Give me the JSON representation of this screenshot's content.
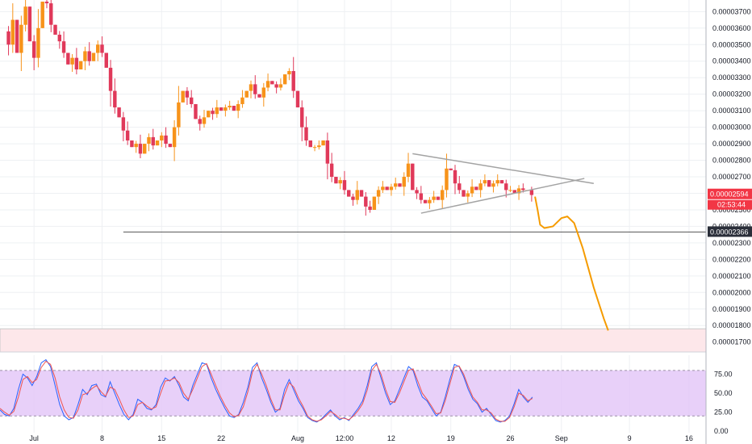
{
  "chart_data": [
    {
      "type": "candlestick",
      "panel": "price",
      "grid": true,
      "ylim": [
        1.64e-05,
        3.77e-05
      ],
      "y_ticks": [
        "0.00001700",
        "0.00001800",
        "0.00001900",
        "0.00002000",
        "0.00002100",
        "0.00002200",
        "0.00002300",
        "0.00002400",
        "0.00002500",
        "0.00002600",
        "0.00002700",
        "0.00002800",
        "0.00002900",
        "0.00003000",
        "0.00003100",
        "0.00003200",
        "0.00003300",
        "0.00003400",
        "0.00003500",
        "0.00003600",
        "0.00003700"
      ],
      "y_tick_values": [
        1.7e-05,
        1.8e-05,
        1.9e-05,
        2e-05,
        2.1e-05,
        2.2e-05,
        2.3e-05,
        2.4e-05,
        2.5e-05,
        2.6e-05,
        2.7e-05,
        2.8e-05,
        2.9e-05,
        3e-05,
        3.1e-05,
        3.2e-05,
        3.3e-05,
        3.4e-05,
        3.5e-05,
        3.6e-05,
        3.7e-05
      ],
      "x_ticks": [
        {
          "label": "Jul",
          "day": 0
        },
        {
          "label": "8",
          "day": 8
        },
        {
          "label": "15",
          "day": 15
        },
        {
          "label": "22",
          "day": 22
        },
        {
          "label": "Aug",
          "day": 31
        },
        {
          "label": "12:00",
          "day": 36.5
        },
        {
          "label": "12",
          "day": 42
        },
        {
          "label": "19",
          "day": 49
        },
        {
          "label": "26",
          "day": 56
        },
        {
          "label": "Sep",
          "day": 62
        },
        {
          "label": "9",
          "day": 70
        },
        {
          "label": "16",
          "day": 77
        }
      ],
      "x_range_days": [
        -4,
        79
      ],
      "close_path": [
        [
          -4,
          3.58e-05
        ],
        [
          -3,
          3.5e-05
        ],
        [
          -2.5,
          3.65e-05
        ],
        [
          -2,
          3.45e-05
        ],
        [
          -1.5,
          3.62e-05
        ],
        [
          -1,
          3.73e-05
        ],
        [
          -0.5,
          3.52e-05
        ],
        [
          0,
          3.42e-05
        ],
        [
          0.5,
          3.6e-05
        ],
        [
          1,
          3.76e-05
        ],
        [
          1.5,
          3.75e-05
        ],
        [
          2,
          3.62e-05
        ],
        [
          2.5,
          3.56e-05
        ],
        [
          3,
          3.52e-05
        ],
        [
          3.5,
          3.45e-05
        ],
        [
          4,
          3.38e-05
        ],
        [
          4.5,
          3.42e-05
        ],
        [
          5,
          3.35e-05
        ],
        [
          5.5,
          3.4e-05
        ],
        [
          6,
          3.46e-05
        ],
        [
          6.5,
          3.4e-05
        ],
        [
          7,
          3.45e-05
        ],
        [
          7.5,
          3.5e-05
        ],
        [
          8,
          3.45e-05
        ],
        [
          8.5,
          3.36e-05
        ],
        [
          9,
          3.22e-05
        ],
        [
          9.5,
          3.12e-05
        ],
        [
          10,
          3.06e-05
        ],
        [
          10.5,
          2.98e-05
        ],
        [
          11,
          2.92e-05
        ],
        [
          11.5,
          2.88e-05
        ],
        [
          12,
          2.9e-05
        ],
        [
          12.5,
          2.84e-05
        ],
        [
          13,
          2.9e-05
        ],
        [
          13.5,
          2.94e-05
        ],
        [
          14,
          2.89e-05
        ],
        [
          14.5,
          2.92e-05
        ],
        [
          15,
          2.95e-05
        ],
        [
          15.5,
          2.9e-05
        ],
        [
          16,
          2.88e-05
        ],
        [
          16.5,
          3e-05
        ],
        [
          17,
          3.15e-05
        ],
        [
          17.5,
          3.22e-05
        ],
        [
          18,
          3.18e-05
        ],
        [
          18.5,
          3.14e-05
        ],
        [
          19,
          3.05e-05
        ],
        [
          19.5,
          3.02e-05
        ],
        [
          20,
          3.06e-05
        ],
        [
          20.5,
          3.1e-05
        ],
        [
          21,
          3.08e-05
        ],
        [
          21.5,
          3.12e-05
        ],
        [
          22,
          3.1e-05
        ],
        [
          22.5,
          3.12e-05
        ],
        [
          23,
          3.13e-05
        ],
        [
          23.5,
          3.1e-05
        ],
        [
          24,
          3.14e-05
        ],
        [
          24.5,
          3.18e-05
        ],
        [
          25,
          3.22e-05
        ],
        [
          25.5,
          3.26e-05
        ],
        [
          26,
          3.2e-05
        ],
        [
          26.5,
          3.18e-05
        ],
        [
          27,
          3.24e-05
        ],
        [
          27.5,
          3.28e-05
        ],
        [
          28,
          3.26e-05
        ],
        [
          28.5,
          3.24e-05
        ],
        [
          29,
          3.26e-05
        ],
        [
          29.5,
          3.32e-05
        ],
        [
          30,
          3.34e-05
        ],
        [
          30.5,
          3.22e-05
        ],
        [
          31,
          3.12e-05
        ],
        [
          31.5,
          3e-05
        ],
        [
          32,
          2.92e-05
        ],
        [
          32.5,
          2.88e-05
        ],
        [
          33,
          2.88e-05
        ],
        [
          33.5,
          2.89e-05
        ],
        [
          34,
          2.92e-05
        ],
        [
          34.5,
          2.78e-05
        ],
        [
          35,
          2.7e-05
        ],
        [
          35.5,
          2.66e-05
        ],
        [
          36,
          2.68e-05
        ],
        [
          36.5,
          2.62e-05
        ],
        [
          37,
          2.58e-05
        ],
        [
          37.5,
          2.56e-05
        ],
        [
          38,
          2.62e-05
        ],
        [
          38.5,
          2.58e-05
        ],
        [
          39,
          2.52e-05
        ],
        [
          39.5,
          2.5e-05
        ],
        [
          40,
          2.58e-05
        ],
        [
          40.5,
          2.62e-05
        ],
        [
          41,
          2.64e-05
        ],
        [
          41.5,
          2.62e-05
        ],
        [
          42,
          2.64e-05
        ],
        [
          42.5,
          2.66e-05
        ],
        [
          43,
          2.64e-05
        ],
        [
          43.5,
          2.7e-05
        ],
        [
          44,
          2.78e-05
        ],
        [
          44.5,
          2.62e-05
        ],
        [
          45,
          2.6e-05
        ],
        [
          45.5,
          2.56e-05
        ],
        [
          46,
          2.54e-05
        ],
        [
          46.5,
          2.56e-05
        ],
        [
          47,
          2.58e-05
        ],
        [
          47.5,
          2.56e-05
        ],
        [
          48,
          2.62e-05
        ],
        [
          48.5,
          2.75e-05
        ],
        [
          49,
          2.74e-05
        ],
        [
          49.5,
          2.66e-05
        ],
        [
          50,
          2.62e-05
        ],
        [
          50.5,
          2.58e-05
        ],
        [
          51,
          2.6e-05
        ],
        [
          51.5,
          2.64e-05
        ],
        [
          52,
          2.62e-05
        ],
        [
          52.5,
          2.66e-05
        ],
        [
          53,
          2.68e-05
        ],
        [
          53.5,
          2.64e-05
        ],
        [
          54,
          2.66e-05
        ],
        [
          54.5,
          2.68e-05
        ],
        [
          55,
          2.66e-05
        ],
        [
          55.5,
          2.62e-05
        ],
        [
          56,
          2.62e-05
        ],
        [
          56.5,
          2.6e-05
        ],
        [
          57,
          2.63e-05
        ],
        [
          57.5,
          2.62e-05
        ],
        [
          58,
          2.62e-05
        ],
        [
          58.5,
          2.59e-05
        ]
      ],
      "triangle_upper": [
        [
          44.5,
          2.84e-05
        ],
        [
          65.8,
          2.66e-05
        ]
      ],
      "triangle_lower": [
        [
          45.5,
          2.48e-05
        ],
        [
          64.7,
          2.69e-05
        ]
      ],
      "projection_curve": [
        [
          58.9,
          2.58e-05
        ],
        [
          59.2,
          2.5e-05
        ],
        [
          59.5,
          2.41e-05
        ],
        [
          60,
          2.39e-05
        ],
        [
          61,
          2.4e-05
        ],
        [
          62,
          2.45e-05
        ],
        [
          62.7,
          2.46e-05
        ],
        [
          63.5,
          2.42e-05
        ],
        [
          64.5,
          2.27e-05
        ],
        [
          65.8,
          2.03e-05
        ],
        [
          67,
          1.84e-05
        ],
        [
          67.5,
          1.77e-05
        ]
      ],
      "horizontal_level": 2.366e-05,
      "support_zone": [
        1.64e-05,
        1.78e-05
      ],
      "last_price_label": "0.00002594",
      "countdown_label": "02:53:44",
      "level_label": "0.00002366",
      "colors": {
        "up": "#f7931a",
        "down": "#e0395a",
        "projection": "#f59b00",
        "triangle": "#a3a3a3",
        "zone": "#fde7ea",
        "level_line": "#545454",
        "last_price_bg": "#f23645"
      }
    },
    {
      "type": "line",
      "panel": "stochastic_rsi",
      "ylim": [
        -2,
        100
      ],
      "y_ticks": [
        "0.00",
        "25.00",
        "50.00",
        "75.00"
      ],
      "y_tick_values": [
        0,
        25,
        50,
        75
      ],
      "band": [
        20,
        80
      ],
      "band_color": "#e2c4f8",
      "series": [
        {
          "color": "#2962ff",
          "values": [
            28,
            22,
            20,
            30,
            55,
            75,
            70,
            60,
            72,
            90,
            94,
            85,
            60,
            35,
            20,
            15,
            18,
            35,
            55,
            48,
            60,
            62,
            48,
            45,
            65,
            50,
            35,
            22,
            15,
            22,
            42,
            38,
            30,
            28,
            35,
            58,
            70,
            66,
            72,
            60,
            45,
            40,
            60,
            75,
            90,
            88,
            70,
            55,
            42,
            30,
            20,
            18,
            22,
            38,
            58,
            84,
            90,
            70,
            55,
            38,
            25,
            30,
            55,
            68,
            54,
            40,
            30,
            18,
            14,
            12,
            16,
            22,
            28,
            20,
            15,
            18,
            14,
            22,
            30,
            40,
            60,
            85,
            90,
            70,
            50,
            35,
            40,
            55,
            70,
            85,
            80,
            60,
            45,
            40,
            30,
            20,
            25,
            45,
            68,
            88,
            85,
            72,
            55,
            42,
            36,
            25,
            30,
            22,
            14,
            12,
            14,
            20,
            36,
            55,
            45,
            38,
            45
          ]
        },
        {
          "color": "#ef5350",
          "values": [
            30,
            25,
            21,
            26,
            45,
            68,
            72,
            64,
            68,
            84,
            92,
            88,
            70,
            45,
            28,
            18,
            17,
            28,
            48,
            50,
            56,
            60,
            52,
            46,
            58,
            55,
            42,
            28,
            18,
            20,
            35,
            38,
            33,
            29,
            32,
            50,
            66,
            67,
            70,
            64,
            50,
            42,
            55,
            70,
            85,
            89,
            75,
            60,
            46,
            34,
            24,
            19,
            21,
            32,
            52,
            78,
            88,
            75,
            60,
            42,
            28,
            28,
            48,
            64,
            58,
            44,
            33,
            20,
            15,
            13,
            15,
            20,
            26,
            22,
            17,
            17,
            15,
            20,
            27,
            36,
            54,
            80,
            88,
            75,
            55,
            39,
            38,
            50,
            65,
            80,
            82,
            66,
            50,
            42,
            33,
            23,
            24,
            40,
            62,
            84,
            86,
            75,
            59,
            45,
            38,
            28,
            28,
            24,
            16,
            13,
            13,
            18,
            32,
            50,
            47,
            40,
            43
          ]
        }
      ]
    }
  ]
}
